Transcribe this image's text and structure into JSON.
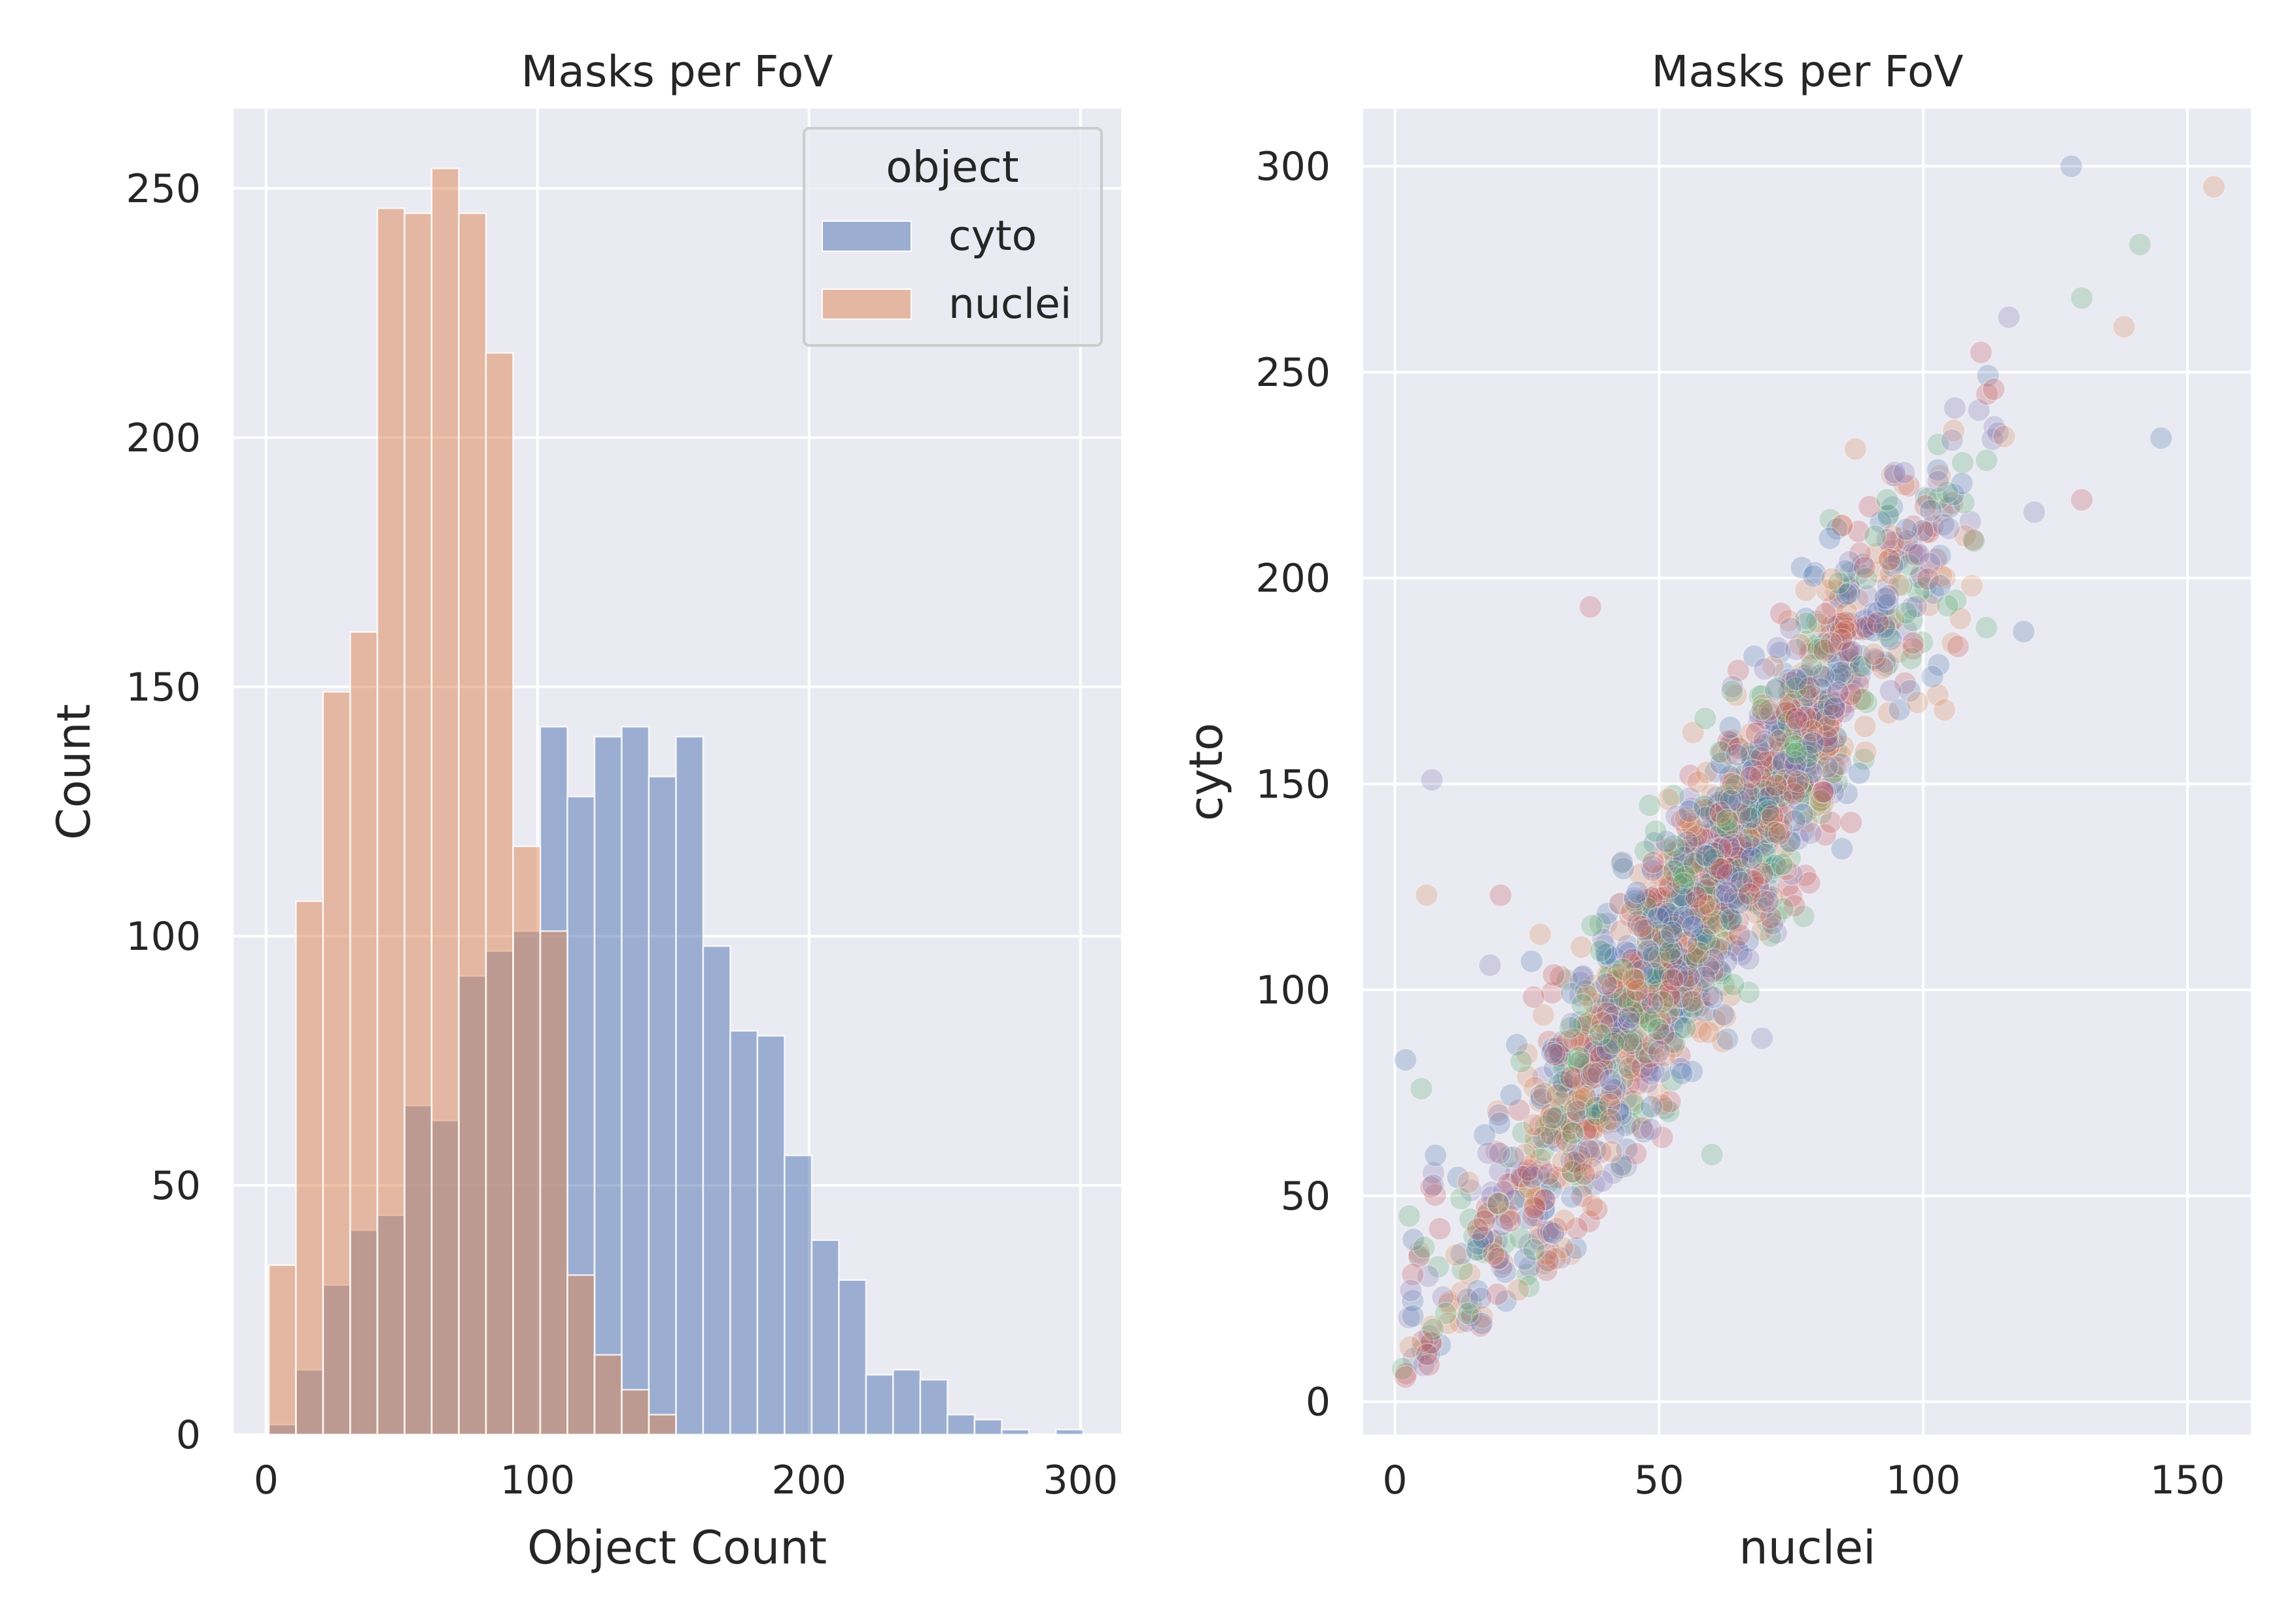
{
  "colors": {
    "background": "#eaeaf2",
    "grid": "#ffffff",
    "cyto": "#4c72b0",
    "nuclei": "#dd8452",
    "scatter_palette": [
      "#4c72b0",
      "#dd8452",
      "#55a868",
      "#c44e52",
      "#8172b3"
    ]
  },
  "chart_data": [
    {
      "type": "bar",
      "subtype": "histogram",
      "title": "Masks per FoV",
      "xlabel": "Object Count",
      "ylabel": "Count",
      "xlim": [
        -12,
        315
      ],
      "ylim": [
        0,
        266
      ],
      "xticks": [
        0,
        100,
        200,
        300
      ],
      "yticks": [
        0,
        50,
        100,
        150,
        200,
        250
      ],
      "grid": true,
      "bin_width": 10,
      "bin_starts": [
        1,
        11,
        21,
        31,
        41,
        51,
        61,
        71,
        81,
        91,
        101,
        111,
        121,
        131,
        141,
        151,
        161,
        171,
        181,
        191,
        201,
        211,
        221,
        231,
        241,
        251,
        261,
        271,
        281,
        291
      ],
      "legend": {
        "title": "object",
        "position": "top-right"
      },
      "series": [
        {
          "name": "cyto",
          "color": "#4c72b0",
          "values": [
            2,
            13,
            30,
            41,
            44,
            66,
            63,
            92,
            97,
            101,
            142,
            128,
            140,
            142,
            132,
            140,
            98,
            81,
            80,
            56,
            39,
            31,
            12,
            13,
            11,
            4,
            3,
            1,
            0,
            1
          ]
        },
        {
          "name": "nuclei",
          "color": "#dd8452",
          "values": [
            34,
            107,
            149,
            161,
            246,
            245,
            254,
            245,
            217,
            118,
            101,
            32,
            16,
            9,
            4,
            0,
            0,
            0,
            0,
            0,
            0,
            0,
            0,
            0,
            0,
            0,
            0,
            0,
            0,
            0
          ]
        }
      ]
    },
    {
      "type": "scatter",
      "title": "Masks per FoV",
      "xlabel": "nuclei",
      "ylabel": "cyto",
      "xlim": [
        -6,
        162
      ],
      "ylim": [
        -8,
        314
      ],
      "xticks": [
        0,
        50,
        100,
        150
      ],
      "yticks": [
        0,
        50,
        100,
        150,
        200,
        250,
        300
      ],
      "grid": true,
      "marker_alpha": 0.25,
      "points_note": "dense band of points following cyto ≈ 2×nuclei; representative visible outliers listed",
      "outliers": [
        [
          128,
          300
        ],
        [
          155,
          295
        ],
        [
          141,
          281
        ],
        [
          37,
          193
        ],
        [
          7,
          151
        ],
        [
          2,
          83
        ],
        [
          6,
          123
        ],
        [
          5,
          76
        ],
        [
          20,
          123
        ],
        [
          18,
          106
        ],
        [
          145,
          234
        ],
        [
          138,
          261
        ],
        [
          130,
          268
        ],
        [
          130,
          219
        ],
        [
          121,
          216
        ],
        [
          119,
          187
        ],
        [
          104,
          168
        ],
        [
          60,
          60
        ],
        [
          2,
          6
        ],
        [
          3,
          27
        ]
      ]
    }
  ]
}
